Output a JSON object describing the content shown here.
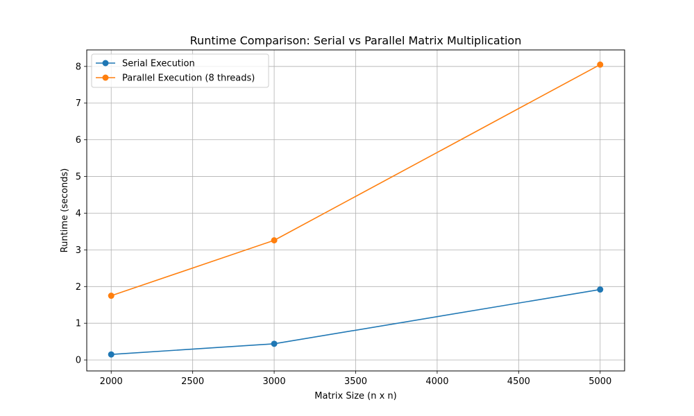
{
  "chart_data": {
    "type": "line",
    "title": "Runtime Comparison: Serial vs Parallel Matrix Multiplication",
    "xlabel": "Matrix Size (n x n)",
    "ylabel": "Runtime (seconds)",
    "x": [
      2000,
      3000,
      5000
    ],
    "xlim": [
      1850,
      5150
    ],
    "ylim": [
      -0.3,
      8.45
    ],
    "xticks": [
      2000,
      2500,
      3000,
      3500,
      4000,
      4500,
      5000
    ],
    "yticks": [
      0,
      1,
      2,
      3,
      4,
      5,
      6,
      7,
      8
    ],
    "grid": true,
    "legend_position": "top-left",
    "series": [
      {
        "name": "Serial Execution",
        "color": "#1f77b4",
        "values": [
          0.15,
          0.44,
          1.92
        ]
      },
      {
        "name": "Parallel Execution (8 threads)",
        "color": "#ff7f0e",
        "values": [
          1.75,
          3.26,
          8.05
        ]
      }
    ]
  }
}
